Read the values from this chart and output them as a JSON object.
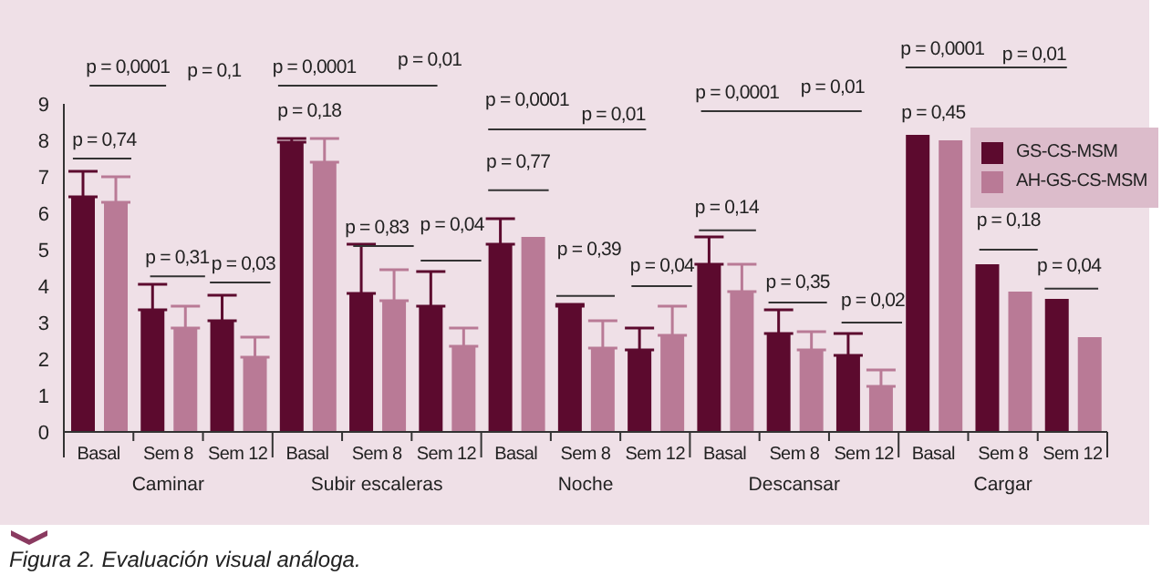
{
  "chart_data": {
    "type": "bar",
    "categories": [
      "Basal",
      "Sem 8",
      "Sem 12",
      "Basal",
      "Sem 8",
      "Sem 12",
      "Basal",
      "Sem 8",
      "Sem 12",
      "Basal",
      "Sem 8",
      "Sem 12",
      "Basal",
      "Sem 8",
      "Sem 12"
    ],
    "series": [
      {
        "name": "GS-CS-MSM",
        "color": "#5c0a2e",
        "values": [
          6.45,
          3.35,
          3.05,
          7.95,
          3.8,
          3.45,
          5.15,
          3.45,
          2.25,
          4.6,
          2.7,
          2.1,
          8.15,
          4.6,
          3.65
        ],
        "errors": [
          [
            6.45,
            7.15
          ],
          [
            3.35,
            4.05
          ],
          [
            3.05,
            3.75
          ],
          [
            7.95,
            8.05
          ],
          [
            3.8,
            5.15
          ],
          [
            3.45,
            4.4
          ],
          [
            5.15,
            5.85
          ],
          [
            3.45,
            3.5
          ],
          [
            2.25,
            2.85
          ],
          [
            4.6,
            5.35
          ],
          [
            2.7,
            3.35
          ],
          [
            2.1,
            2.7
          ],
          null,
          null,
          null
        ]
      },
      {
        "name": "AH-GS-CS-MSM",
        "color": "#b97a96",
        "values": [
          6.3,
          2.85,
          2.05,
          7.4,
          3.6,
          2.35,
          5.35,
          2.3,
          2.65,
          3.85,
          2.25,
          1.25,
          8.0,
          3.85,
          2.6
        ],
        "errors": [
          [
            6.3,
            7.0
          ],
          [
            2.85,
            3.45
          ],
          [
            2.05,
            2.6
          ],
          [
            7.4,
            8.05
          ],
          [
            3.6,
            4.45
          ],
          [
            2.35,
            2.85
          ],
          null,
          [
            2.3,
            3.05
          ],
          [
            2.65,
            3.45
          ],
          [
            3.85,
            4.6
          ],
          [
            2.25,
            2.75
          ],
          [
            1.25,
            1.7
          ],
          null,
          null,
          null
        ]
      }
    ],
    "ylim": [
      0,
      9
    ],
    "yticks": [
      0,
      1,
      2,
      3,
      4,
      5,
      6,
      7,
      8,
      9
    ],
    "grid": false,
    "legend": "top right",
    "annotations": [
      "p = 0,74",
      "p = 0,0001",
      "p = 0,1",
      "p = 0,31",
      "p = 0,03",
      "p = 0,0001",
      "p = 0,01",
      "p = 0,18",
      "p = 0,83",
      "p = 0,04",
      "p = 0,0001",
      "p = 0,01",
      "p = 0,77",
      "p = 0,39",
      "p = 0,04",
      "p = 0,0001",
      "p = 0,01",
      "p = 0,14",
      "p = 0,35",
      "p = 0,02",
      "p = 0,0001",
      "p = 0,01",
      "p = 0,45",
      "p = 0,18",
      "p = 0,04",
      "Caminar",
      "Subir escaleras",
      "Noche",
      "Descansar",
      "Cargar",
      "Figura 2. Evaluación visual análoga."
    ]
  }
}
